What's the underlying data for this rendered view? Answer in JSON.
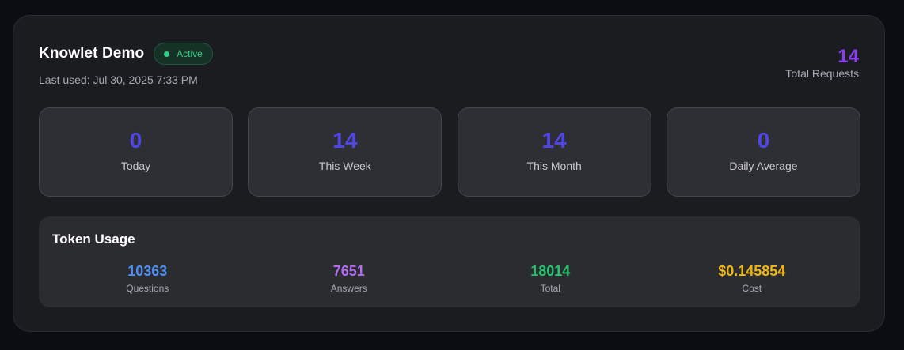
{
  "project": {
    "name": "Knowlet Demo",
    "status": "Active",
    "last_used": "Last used: Jul 30, 2025 7:33 PM",
    "total_requests_value": "14",
    "total_requests_label": "Total Requests"
  },
  "stats": [
    {
      "value": "0",
      "label": "Today"
    },
    {
      "value": "14",
      "label": "This Week"
    },
    {
      "value": "14",
      "label": "This Month"
    },
    {
      "value": "0",
      "label": "Daily Average"
    }
  ],
  "token_usage": {
    "title": "Token Usage",
    "items": [
      {
        "value": "10363",
        "label": "Questions",
        "color": "#4f8ff0"
      },
      {
        "value": "7651",
        "label": "Answers",
        "color": "#b26cf2"
      },
      {
        "value": "18014",
        "label": "Total",
        "color": "#25c46f"
      },
      {
        "value": "$0.145854",
        "label": "Cost",
        "color": "#f0b70e"
      }
    ]
  },
  "colors": {
    "accent_purple": "#8b3df0",
    "stat_indigo": "#5046e5",
    "active_green": "#2fcf85"
  }
}
